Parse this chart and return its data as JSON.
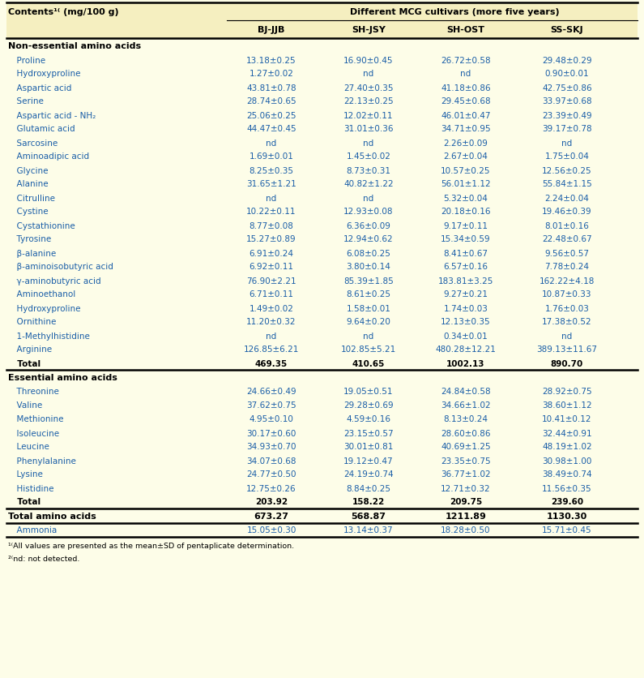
{
  "header_top": "Different MCG cultivars (more five years)",
  "col0_header": "Contents¹⁽ (mg/100 g)",
  "header_cols": [
    "BJ-JJB",
    "SH-JSY",
    "SH-OST",
    "SS-SKJ"
  ],
  "bg_color": "#FDFDE8",
  "section1_header": "Non-essential amino acids",
  "section1_rows": [
    [
      "  Proline",
      "13.18±0.25",
      "16.90±0.45",
      "26.72±0.58",
      "29.48±0.29"
    ],
    [
      "  Hydroxyproline",
      "1.27±0.02",
      "nd",
      "nd",
      "0.90±0.01"
    ],
    [
      "  Aspartic acid",
      "43.81±0.78",
      "27.40±0.35",
      "41.18±0.86",
      "42.75±0.86"
    ],
    [
      "  Serine",
      "28.74±0.65",
      "22.13±0.25",
      "29.45±0.68",
      "33.97±0.68"
    ],
    [
      "  Aspartic acid - NH₂",
      "25.06±0.25",
      "12.02±0.11",
      "46.01±0.47",
      "23.39±0.49"
    ],
    [
      "  Glutamic acid",
      "44.47±0.45",
      "31.01±0.36",
      "34.71±0.95",
      "39.17±0.78"
    ],
    [
      "  Sarcosine",
      "nd",
      "nd",
      "2.26±0.09",
      "nd"
    ],
    [
      "  Aminoadipic acid",
      "1.69±0.01",
      "1.45±0.02",
      "2.67±0.04",
      "1.75±0.04"
    ],
    [
      "  Glycine",
      "8.25±0.35",
      "8.73±0.31",
      "10.57±0.25",
      "12.56±0.25"
    ],
    [
      "  Alanine",
      "31.65±1.21",
      "40.82±1.22",
      "56.01±1.12",
      "55.84±1.15"
    ],
    [
      "  Citrulline",
      "nd",
      "nd",
      "5.32±0.04",
      "2.24±0.04"
    ],
    [
      "  Cystine",
      "10.22±0.11",
      "12.93±0.08",
      "20.18±0.16",
      "19.46±0.39"
    ],
    [
      "  Cystathionine",
      "8.77±0.08",
      "6.36±0.09",
      "9.17±0.11",
      "8.01±0.16"
    ],
    [
      "  Tyrosine",
      "15.27±0.89",
      "12.94±0.62",
      "15.34±0.59",
      "22.48±0.67"
    ],
    [
      "  β-alanine",
      "6.91±0.24",
      "6.08±0.25",
      "8.41±0.67",
      "9.56±0.57"
    ],
    [
      "  β-aminoisobutyric acid",
      "6.92±0.11",
      "3.80±0.14",
      "6.57±0.16",
      "7.78±0.24"
    ],
    [
      "  γ-aminobutyric acid",
      "76.90±2.21",
      "85.39±1.85",
      "183.81±3.25",
      "162.22±4.18"
    ],
    [
      "  Aminoethanol",
      "6.71±0.11",
      "8.61±0.25",
      "9.27±0.21",
      "10.87±0.33"
    ],
    [
      "  Hydroxyproline",
      "1.49±0.02",
      "1.58±0.01",
      "1.74±0.03",
      "1.76±0.03"
    ],
    [
      "  Ornithine",
      "11.20±0.32",
      "9.64±0.20",
      "12.13±0.35",
      "17.38±0.52"
    ],
    [
      "  1-Methylhistidine",
      "nd",
      "nd",
      "0.34±0.01",
      "nd"
    ],
    [
      "  Arginine",
      "126.85±6.21",
      "102.85±5.21",
      "480.28±12.21",
      "389.13±11.67"
    ],
    [
      "  Total",
      "469.35",
      "410.65",
      "1002.13",
      "890.70"
    ]
  ],
  "section2_header": "Essential amino acids",
  "section2_rows": [
    [
      "  Threonine",
      "24.66±0.49",
      "19.05±0.51",
      "24.84±0.58",
      "28.92±0.75"
    ],
    [
      "  Valine",
      "37.62±0.75",
      "29.28±0.69",
      "34.66±1.02",
      "38.60±1.12"
    ],
    [
      "  Methionine",
      "4.95±0.10",
      "4.59±0.16",
      "8.13±0.24",
      "10.41±0.12"
    ],
    [
      "  Isoleucine",
      "30.17±0.60",
      "23.15±0.57",
      "28.60±0.86",
      "32.44±0.91"
    ],
    [
      "  Leucine",
      "34.93±0.70",
      "30.01±0.81",
      "40.69±1.25",
      "48.19±1.02"
    ],
    [
      "  Phenylalanine",
      "34.07±0.68",
      "19.12±0.47",
      "23.35±0.75",
      "30.98±1.00"
    ],
    [
      "  Lysine",
      "24.77±0.50",
      "24.19±0.74",
      "36.77±1.02",
      "38.49±0.74"
    ],
    [
      "  Histidine",
      "12.75±0.26",
      "8.84±0.25",
      "12.71±0.32",
      "11.56±0.35"
    ],
    [
      "  Total",
      "203.92",
      "158.22",
      "209.75",
      "239.60"
    ]
  ],
  "total_row": [
    "Total amino acids",
    "673.27",
    "568.87",
    "1211.89",
    "1130.30"
  ],
  "ammonia_row": [
    "  Ammonia",
    "15.05±0.30",
    "13.14±0.37",
    "18.28±0.50",
    "15.71±0.45"
  ],
  "footnote1": "¹⁽All values are presented as the mean±SD of pentaplicate determination.",
  "footnote2": "²⁽nd: not detected.",
  "blue": "#1A5EA8",
  "black": "#000000",
  "header_bg": "#F5EFC0",
  "table_bg": "#FDFDE8"
}
